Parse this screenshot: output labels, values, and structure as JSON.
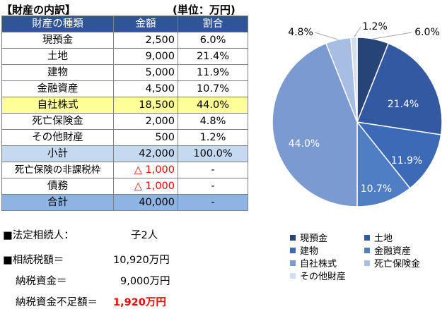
{
  "title": "【財産の内訳】",
  "unit": "(単位：万円)",
  "table": {
    "headers": [
      "財産の種類",
      "金額",
      "割合"
    ],
    "rows": [
      {
        "name": "現預金",
        "amount": "2,500",
        "pct": "6.0%"
      },
      {
        "name": "土地",
        "amount": "9,000",
        "pct": "21.4%"
      },
      {
        "name": "建物",
        "amount": "5,000",
        "pct": "11.9%"
      },
      {
        "name": "金融資産",
        "amount": "4,500",
        "pct": "10.7%"
      },
      {
        "name": "自社株式",
        "amount": "18,500",
        "pct": "44.0%"
      },
      {
        "name": "死亡保険金",
        "amount": "2,000",
        "pct": "4.8%"
      },
      {
        "name": "その他財産",
        "amount": "500",
        "pct": "1.2%"
      },
      {
        "name": "小計",
        "amount": "42,000",
        "pct": "100.0%"
      },
      {
        "name": "死亡保険の非課税枠",
        "amount": "△ 1,000",
        "pct": "-"
      },
      {
        "name": "債務",
        "amount": "△ 1,000",
        "pct": "-"
      },
      {
        "name": "合計",
        "amount": "40,000",
        "pct": "-"
      }
    ]
  },
  "info": {
    "heirs_label": "■法定相続人：",
    "heirs_value": "子2人",
    "tax_label": "■相続税額＝",
    "tax_value": "10,920万円",
    "funds_label": "納税資金＝",
    "funds_value": "9,000万円",
    "shortage_label": "納税資金不足額＝",
    "shortage_value": "1,920万円"
  },
  "colors": {
    "header": "#2f5597",
    "highlight": "#ffff99",
    "subtotal": "#c5d9f1",
    "total": "#8eb4e3",
    "negative": "#ff0000"
  },
  "chart_data": {
    "type": "pie",
    "series": [
      {
        "name": "現預金",
        "value": 6.0,
        "label": "6.0%",
        "color": "#264478"
      },
      {
        "name": "土地",
        "value": 21.4,
        "label": "21.4%",
        "color": "#335aa1"
      },
      {
        "name": "建物",
        "value": 11.9,
        "label": "11.9%",
        "color": "#3c6ab6"
      },
      {
        "name": "金融資産",
        "value": 10.7,
        "label": "10.7%",
        "color": "#4f7ec4"
      },
      {
        "name": "自社株式",
        "value": 44.0,
        "label": "44.0%",
        "color": "#7a9ad0"
      },
      {
        "name": "死亡保険金",
        "value": 4.8,
        "label": "4.8%",
        "color": "#a7bde1"
      },
      {
        "name": "その他財産",
        "value": 1.2,
        "label": "1.2%",
        "color": "#d3deef"
      }
    ],
    "legend_position": "bottom"
  }
}
